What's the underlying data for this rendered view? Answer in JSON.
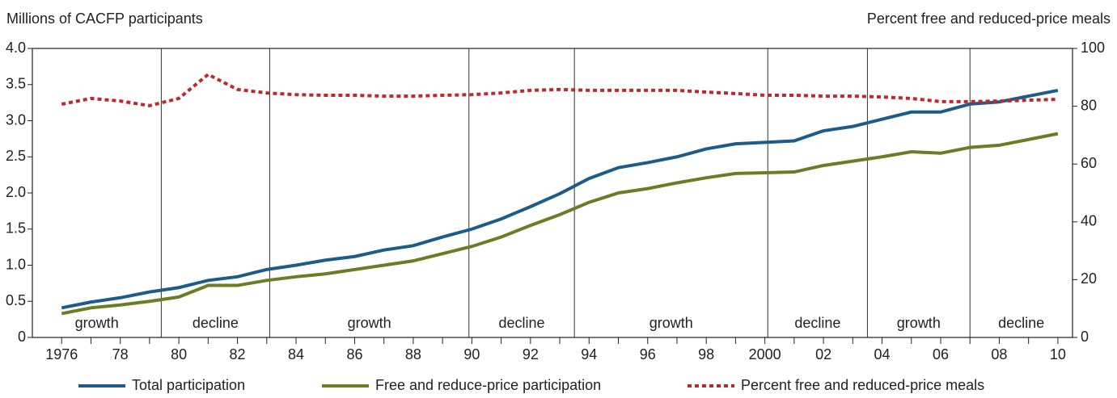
{
  "chart_data": {
    "type": "line",
    "y_label": "Millions of CACFP participants",
    "y2_label": "Percent free and reduced-price meals",
    "x": [
      1976,
      1977,
      1978,
      1979,
      1980,
      1981,
      1982,
      1983,
      1984,
      1985,
      1986,
      1987,
      1988,
      1989,
      1990,
      1991,
      1992,
      1993,
      1994,
      1995,
      1996,
      1997,
      1998,
      1999,
      2000,
      2001,
      2002,
      2003,
      2004,
      2005,
      2006,
      2007,
      2008,
      2009,
      2010
    ],
    "series": [
      {
        "name": "Total participation",
        "color": "#1d5c8a",
        "dash": false,
        "values": [
          0.41,
          0.49,
          0.55,
          0.63,
          0.69,
          0.79,
          0.84,
          0.94,
          1.0,
          1.07,
          1.12,
          1.21,
          1.27,
          1.39,
          1.5,
          1.64,
          1.81,
          1.99,
          2.2,
          2.35,
          2.42,
          2.5,
          2.61,
          2.68,
          2.7,
          2.72,
          2.86,
          2.92,
          3.02,
          3.12,
          3.12,
          3.23,
          3.26,
          3.34,
          3.42
        ]
      },
      {
        "name": "Free and reduce-price participation",
        "color": "#6b7d24",
        "dash": false,
        "values": [
          0.33,
          0.41,
          0.45,
          0.5,
          0.56,
          0.72,
          0.72,
          0.79,
          0.84,
          0.88,
          0.94,
          1.0,
          1.06,
          1.16,
          1.26,
          1.39,
          1.55,
          1.7,
          1.87,
          2.0,
          2.06,
          2.14,
          2.21,
          2.27,
          2.28,
          2.29,
          2.38,
          2.44,
          2.5,
          2.57,
          2.55,
          2.63,
          2.66,
          2.74,
          2.82
        ]
      },
      {
        "name": "Percent free and reduced-price meals",
        "color": "#c0262d",
        "dash": true,
        "axis": "y2",
        "values": [
          80.7,
          82.7,
          81.8,
          80.2,
          82.7,
          91,
          85.8,
          84.6,
          84,
          83.8,
          83.8,
          83.5,
          83.5,
          83.8,
          84,
          84.6,
          85.5,
          85.8,
          85.5,
          85.5,
          85.5,
          85.5,
          84.9,
          84.4,
          83.8,
          83.8,
          83.5,
          83.5,
          83.2,
          82.7,
          81.6,
          81.6,
          81.8,
          82.1,
          82.4
        ]
      }
    ],
    "xlim": [
      1975,
      2010.5
    ],
    "xticks": [
      {
        "value": 1976,
        "label": "1976"
      },
      {
        "value": 1978,
        "label": "78"
      },
      {
        "value": 1980,
        "label": "80"
      },
      {
        "value": 1982,
        "label": "82"
      },
      {
        "value": 1984,
        "label": "84"
      },
      {
        "value": 1986,
        "label": "86"
      },
      {
        "value": 1988,
        "label": "88"
      },
      {
        "value": 1990,
        "label": "90"
      },
      {
        "value": 1992,
        "label": "92"
      },
      {
        "value": 1994,
        "label": "94"
      },
      {
        "value": 1996,
        "label": "96"
      },
      {
        "value": 1998,
        "label": "98"
      },
      {
        "value": 2000,
        "label": "2000"
      },
      {
        "value": 2002,
        "label": "02"
      },
      {
        "value": 2004,
        "label": "04"
      },
      {
        "value": 2006,
        "label": "06"
      },
      {
        "value": 2008,
        "label": "08"
      },
      {
        "value": 2010,
        "label": "10"
      }
    ],
    "xminor_ticks": [
      1977,
      1979,
      1981,
      1983,
      1985,
      1987,
      1989,
      1991,
      1993,
      1995,
      1997,
      1999,
      2001,
      2003,
      2005,
      2007,
      2009
    ],
    "ylim": [
      0,
      4
    ],
    "yticks": [
      0,
      0.5,
      {
        "value": 1,
        "label": "1.0"
      },
      1.5,
      {
        "value": 2,
        "label": "2.0"
      },
      2.5,
      {
        "value": 3,
        "label": "3.0"
      },
      3.5,
      {
        "value": 4,
        "label": "4.0"
      }
    ],
    "y2lim": [
      0,
      100
    ],
    "y2ticks": [
      0,
      20,
      40,
      60,
      80,
      100
    ],
    "dividers": [
      1979.4,
      1983.1,
      1989.9,
      1993.5,
      2000.1,
      2003.5,
      2007.0
    ],
    "period_labels": [
      "growth",
      "decline",
      "growth",
      "decline",
      "growth",
      "decline",
      "growth",
      "decline"
    ]
  }
}
